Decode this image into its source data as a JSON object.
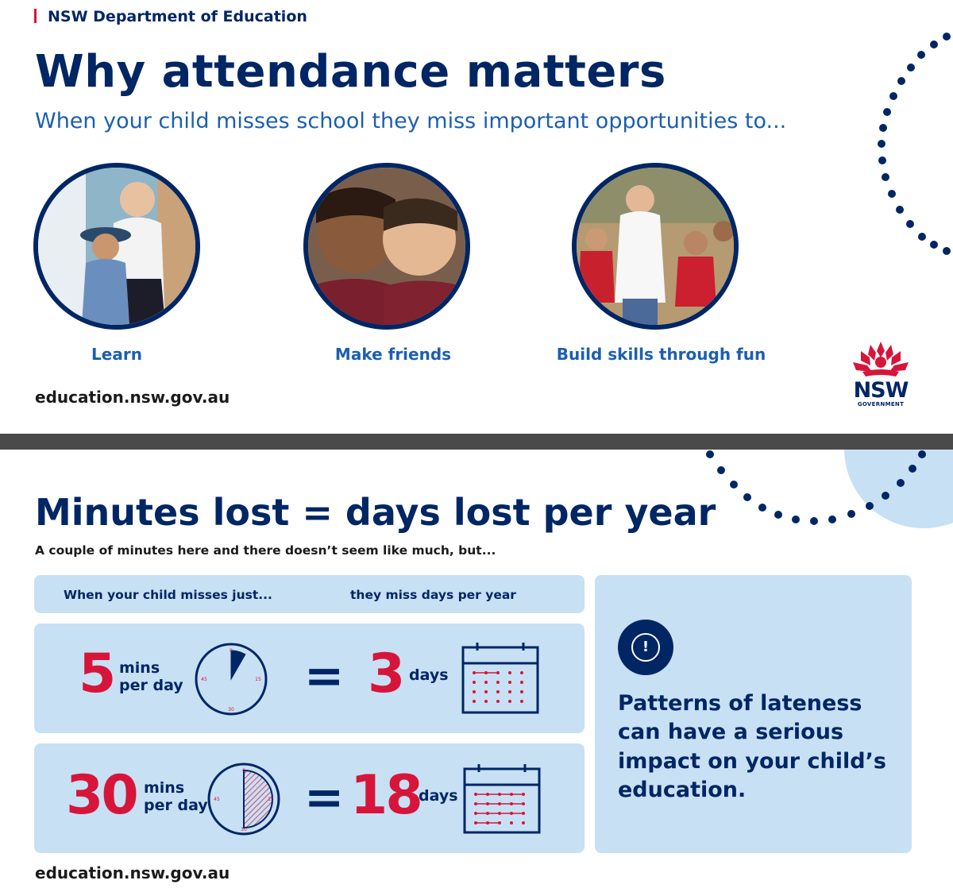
{
  "page1": {
    "department": "NSW Department of Education",
    "title": "Why attendance matters",
    "subtitle": "When your child misses school they miss important opportunities to...",
    "opportunities": [
      {
        "label": "Learn"
      },
      {
        "label": "Make friends"
      },
      {
        "label": "Build skills through fun"
      }
    ],
    "url": "education.nsw.gov.au",
    "logo": {
      "word": "NSW",
      "sub": "GOVERNMENT"
    }
  },
  "page2": {
    "title": "Minutes lost = days lost per year",
    "subtitle": "A couple of minutes here and there doesn’t seem like much, but...",
    "header_left": "When your child misses just...",
    "header_right": "they miss days per year",
    "rows": [
      {
        "minutes": "5",
        "minutes_unit_1": "mins",
        "minutes_unit_2": "per day",
        "equals": "=",
        "days": "3",
        "days_unit": "days",
        "clock_fraction": 0.083
      },
      {
        "minutes": "30",
        "minutes_unit_1": "mins",
        "minutes_unit_2": "per day",
        "equals": "=",
        "days": "18",
        "days_unit": "days",
        "clock_fraction": 0.5
      }
    ],
    "clock_labels": {
      "top": "0",
      "right": "15",
      "bottom": "30",
      "left": "45"
    },
    "note_icon": "!",
    "note": "Patterns of lateness can have a serious impact on your child’s education.",
    "url": "education.nsw.gov.au"
  },
  "colors": {
    "navy": "#002664",
    "red": "#d7153a",
    "blue": "#1c5fb1",
    "panel": "#c8e0f4"
  }
}
